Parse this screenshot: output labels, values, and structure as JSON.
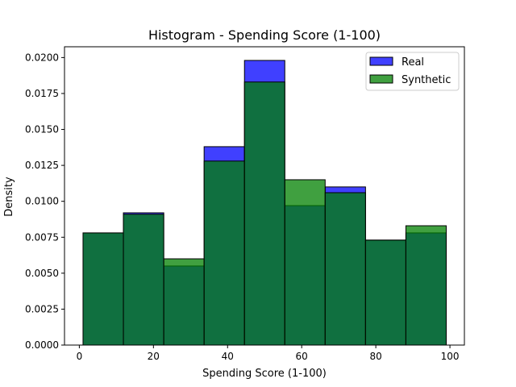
{
  "chart_data": {
    "type": "bar",
    "title": "Histogram - Spending Score (1-100)",
    "xlabel": "Spending Score (1-100)",
    "ylabel": "Density",
    "xlim": [
      -4.0,
      103.9
    ],
    "ylim": [
      0,
      0.02075
    ],
    "xticks": [
      0,
      20,
      40,
      60,
      80,
      100
    ],
    "yticks": [
      0.0,
      0.0025,
      0.005,
      0.0075,
      0.01,
      0.0125,
      0.015,
      0.0175,
      0.02
    ],
    "xtick_labels": [
      "0",
      "20",
      "40",
      "60",
      "80",
      "100"
    ],
    "ytick_labels": [
      "0.0000",
      "0.0025",
      "0.0050",
      "0.0075",
      "0.0100",
      "0.0125",
      "0.0150",
      "0.0175",
      "0.0200"
    ],
    "bin_edges": [
      1,
      11.89,
      22.78,
      33.67,
      44.56,
      55.44,
      66.33,
      77.22,
      88.11,
      99
    ],
    "series": [
      {
        "name": "Real",
        "color": "#0000ff",
        "alpha": 0.75,
        "values": [
          0.0078,
          0.0092,
          0.0055,
          0.0138,
          0.0198,
          0.0097,
          0.011,
          0.0073,
          0.0078
        ]
      },
      {
        "name": "Synthetic",
        "color": "#008000",
        "alpha": 0.75,
        "values": [
          0.0078,
          0.0091,
          0.006,
          0.0128,
          0.0183,
          0.0115,
          0.0106,
          0.0073,
          0.0083
        ]
      }
    ],
    "legend": {
      "position": "top-right"
    }
  }
}
